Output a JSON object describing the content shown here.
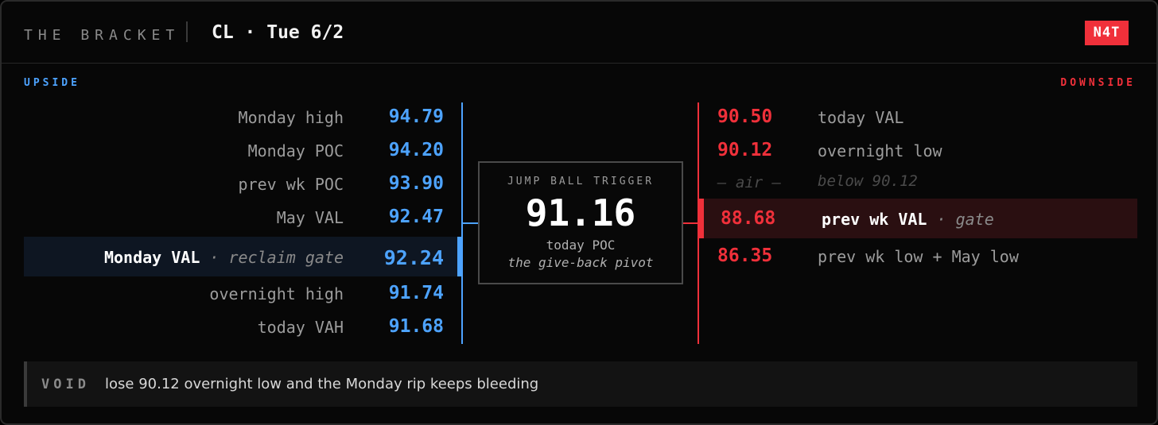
{
  "header": {
    "brand": "THE BRACKET",
    "session": "CL · Tue 6/2",
    "badge": "N4T"
  },
  "upside": {
    "label": "UPSIDE",
    "levels": [
      {
        "name": "Monday high",
        "price": "94.79"
      },
      {
        "name": "Monday POC",
        "price": "94.20"
      },
      {
        "name": "prev wk POC",
        "price": "93.90"
      },
      {
        "name": "May VAL",
        "price": "92.47"
      },
      {
        "name": "Monday VAL",
        "note": "· reclaim gate",
        "price": "92.24"
      },
      {
        "name": "overnight high",
        "price": "91.74"
      },
      {
        "name": "today VAH",
        "price": "91.68"
      }
    ]
  },
  "trigger": {
    "label": "JUMP BALL TRIGGER",
    "price": "91.16",
    "subtitle": "today POC",
    "note": "the give-back pivot"
  },
  "downside": {
    "label": "DOWNSIDE",
    "levels": [
      {
        "price": "90.50",
        "name": "today VAL"
      },
      {
        "price": "90.12",
        "name": "overnight low"
      },
      {
        "price": "— air —",
        "name": "below 90.12"
      },
      {
        "price": "88.68",
        "name": "prev wk VAL",
        "note": "· gate"
      },
      {
        "price": "86.35",
        "name": "prev wk low + May low"
      }
    ]
  },
  "footer": {
    "label": "VOID",
    "message": "lose 90.12 overnight low and the Monday rip keeps bleeding"
  },
  "colors": {
    "upside": "#4da3ff",
    "downside": "#f0303a",
    "badge": "#f0303a"
  }
}
